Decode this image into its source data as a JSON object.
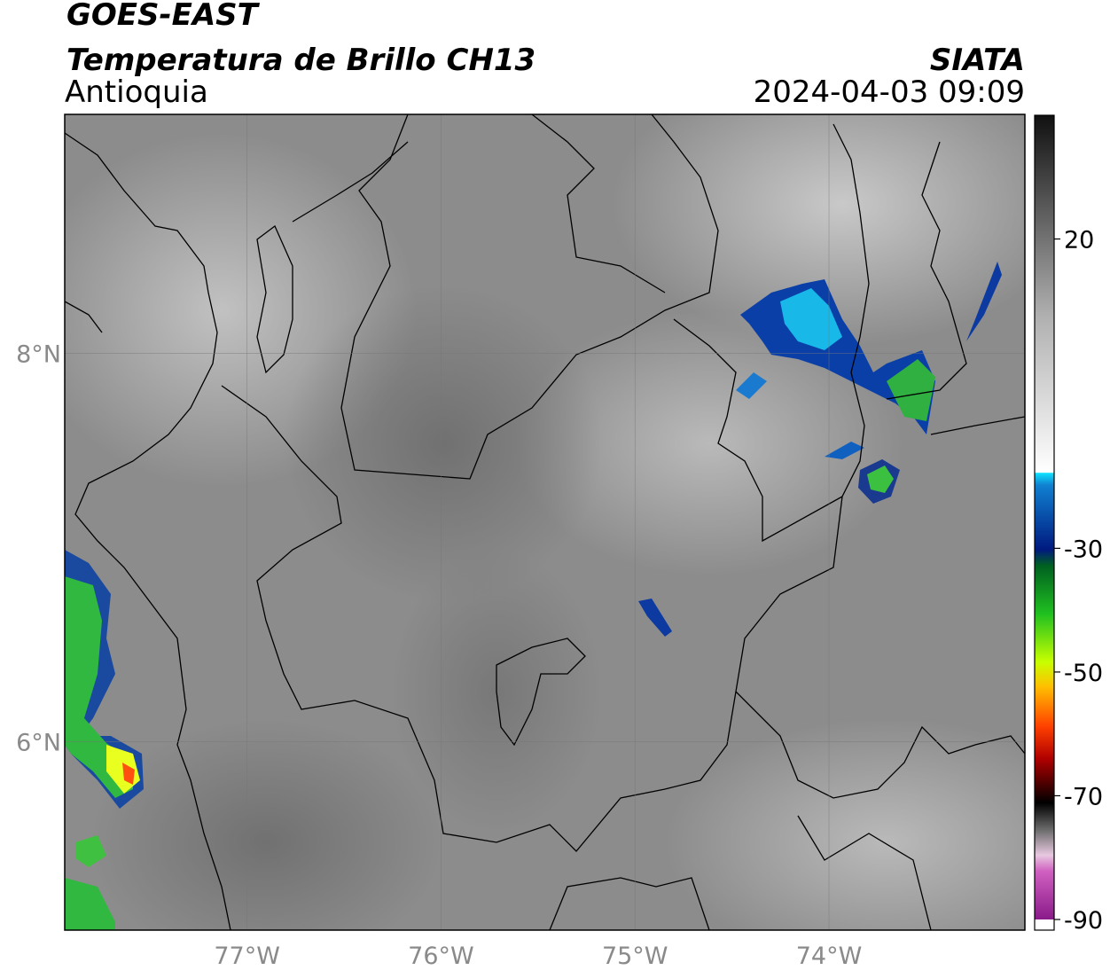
{
  "header": {
    "satellite": "GOES-EAST",
    "product": "Temperatura de Brillo CH13",
    "agency": "SIATA",
    "region": "Antioquia",
    "datetime": "2024-04-03 09:09"
  },
  "map": {
    "xlim": [
      -77.94,
      -72.99
    ],
    "ylim": [
      5.03,
      9.23
    ],
    "xticks": [
      {
        "value": -77,
        "label": "77°W"
      },
      {
        "value": -76,
        "label": "76°W"
      },
      {
        "value": -75,
        "label": "75°W"
      },
      {
        "value": -74,
        "label": "74°W"
      }
    ],
    "yticks": [
      {
        "value": 8,
        "label": "8°N"
      },
      {
        "value": 6,
        "label": "6°N"
      }
    ],
    "grid": true
  },
  "colorbar": {
    "lim": [
      -90,
      40
    ],
    "ticks": [
      20,
      -30,
      -50,
      -70,
      -90
    ]
  }
}
